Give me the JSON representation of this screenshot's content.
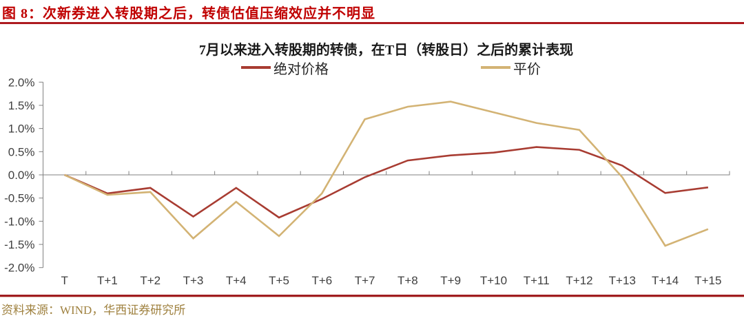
{
  "header": {
    "title": "图 8：次新券进入转股期之后，转债估值压缩效应并不明显"
  },
  "footer": {
    "source": "资料来源：WIND，华西证券研究所"
  },
  "colors": {
    "title_red": "#C00000",
    "rule_red": "#AD1A1F",
    "series_absolute_price": "#A83C32",
    "series_parity": "#D3B374",
    "axis_gray": "#808080",
    "axis_label": "#3F3F3F",
    "source_tan": "#9F813F"
  },
  "chart_data": {
    "type": "line",
    "title": "7月以来进入转股期的转债，在T日（转股日）之后的累计表现",
    "categories": [
      "T",
      "T+1",
      "T+2",
      "T+3",
      "T+4",
      "T+5",
      "T+6",
      "T+7",
      "T+8",
      "T+9",
      "T+10",
      "T+11",
      "T+12",
      "T+13",
      "T+14",
      "T+15"
    ],
    "series": [
      {
        "name": "绝对价格",
        "color": "#A83C32",
        "values": [
          0.0,
          -0.4,
          -0.28,
          -0.9,
          -0.28,
          -0.92,
          -0.52,
          -0.05,
          0.31,
          0.42,
          0.48,
          0.6,
          0.54,
          0.2,
          -0.39,
          -0.27
        ]
      },
      {
        "name": "平价",
        "color": "#D3B374",
        "values": [
          0.0,
          -0.43,
          -0.37,
          -1.37,
          -0.58,
          -1.32,
          -0.4,
          1.2,
          1.47,
          1.58,
          1.35,
          1.12,
          0.97,
          -0.05,
          -1.53,
          -1.17
        ]
      }
    ],
    "unit": "percent",
    "ylim": [
      -2.0,
      2.0
    ],
    "ytick_step": 0.5,
    "yticks": [
      "2.0%",
      "1.5%",
      "1.0%",
      "0.5%",
      "0.0%",
      "-0.5%",
      "-1.0%",
      "-1.5%",
      "-2.0%"
    ],
    "xlabel": "",
    "ylabel": "",
    "grid": false,
    "legend_position": "top"
  }
}
